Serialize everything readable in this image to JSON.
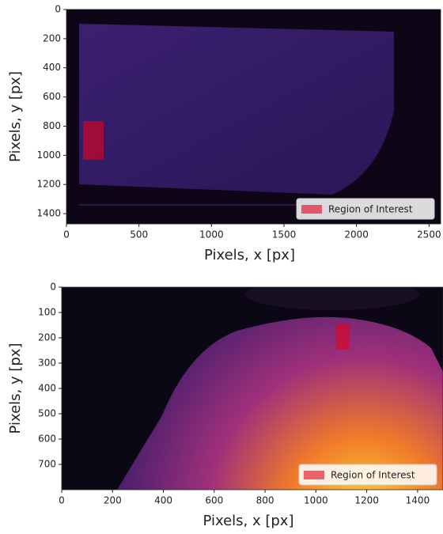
{
  "chart_data": [
    {
      "type": "image",
      "xlabel": "Pixels, x [px]",
      "ylabel": "Pixels, y [px]",
      "xlim": [
        0,
        2580
      ],
      "ylim": [
        1470,
        0
      ],
      "xticks": [
        0,
        500,
        1000,
        1500,
        2000,
        2500
      ],
      "yticks": [
        0,
        200,
        400,
        600,
        800,
        1000,
        1200,
        1400
      ],
      "legend": "lower right",
      "series": [
        {
          "name": "Region of Interest",
          "color": "#e8001c",
          "x": [
            115,
            257
          ],
          "y": [
            765,
            1031
          ]
        }
      ]
    },
    {
      "type": "image",
      "xlabel": "Pixels, x [px]",
      "ylabel": "Pixels, y [px]",
      "xlim": [
        0,
        1500
      ],
      "ylim": [
        800,
        0
      ],
      "xticks": [
        0,
        200,
        400,
        600,
        800,
        1000,
        1200,
        1400
      ],
      "yticks": [
        0,
        100,
        200,
        300,
        400,
        500,
        600,
        700
      ],
      "legend": "lower right",
      "series": [
        {
          "name": "Region of Interest",
          "color": "#e8001c",
          "x": [
            1079,
            1132
          ],
          "y": [
            144,
            247
          ]
        }
      ]
    }
  ]
}
